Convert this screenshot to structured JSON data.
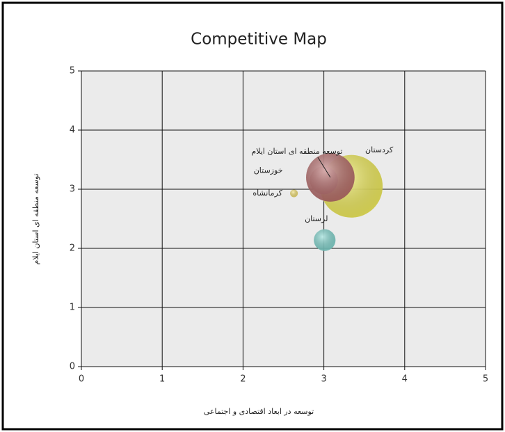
{
  "chart_data": {
    "type": "bubble",
    "title": "Competitive Map",
    "x_label": "توسعه در ابعاد اقتصادی و اجتماعی",
    "y_label": "توسعه منطقه ای استان ایلام",
    "xlim": [
      0,
      5
    ],
    "ylim": [
      0,
      5
    ],
    "xticks": [
      0,
      1,
      2,
      3,
      4,
      5
    ],
    "yticks": [
      0,
      1,
      2,
      3,
      4,
      5
    ],
    "grid": true,
    "series": [
      {
        "name": "کردستان",
        "color": "#f4ef52",
        "x": [
          3.34
        ],
        "y": [
          3.05
        ],
        "size": [
          100
        ]
      },
      {
        "name": "خوزستان",
        "color": "#c27676",
        "x": [
          3.0
        ],
        "y": [
          3.15
        ],
        "size": [
          20
        ]
      },
      {
        "name": "توسعه منطقه ای استان ایلام",
        "color": "#b86a6a",
        "x": [
          3.08
        ],
        "y": [
          3.2
        ],
        "size": [
          60
        ]
      },
      {
        "name": "کرمانشاه",
        "color": "#f3df6e",
        "x": [
          2.63
        ],
        "y": [
          2.93
        ],
        "size": [
          1.5
        ]
      },
      {
        "name": "لرستان",
        "color": "#7fd8d0",
        "x": [
          3.01
        ],
        "y": [
          2.14
        ],
        "size": [
          12
        ]
      }
    ]
  }
}
